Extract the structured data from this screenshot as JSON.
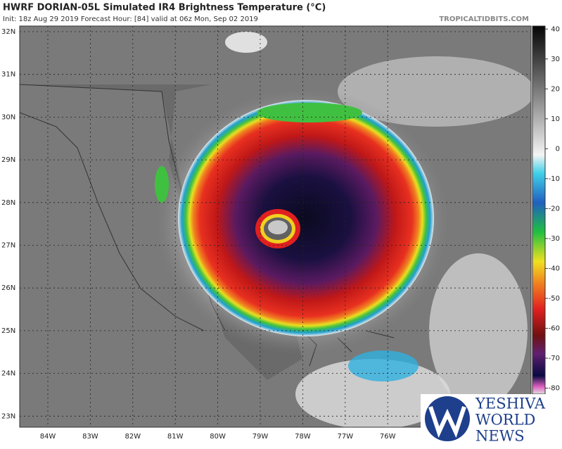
{
  "header": {
    "title": "HWRF DORIAN-05L Simulated IR4 Brightness Temperature (°C)",
    "subtitle": "Init: 18z Aug 29 2019    Forecast Hour: [84]    valid at 06z Mon, Sep 02 2019",
    "source": "TROPICALTIDBITS.COM"
  },
  "map": {
    "lat_labels": [
      "32N",
      "31N",
      "30N",
      "29N",
      "28N",
      "27N",
      "26N",
      "25N",
      "24N",
      "23N"
    ],
    "lon_labels": [
      "84W",
      "83W",
      "82W",
      "81W",
      "80W",
      "79W",
      "78W",
      "77W",
      "76W"
    ]
  },
  "colorbar": {
    "range": [
      -82,
      41
    ],
    "ticks": [
      40,
      30,
      20,
      10,
      0,
      -10,
      -20,
      -30,
      -40,
      -50,
      -60,
      -70,
      -80
    ]
  },
  "logo": {
    "line1": "YESHIVA",
    "line2": "WORLD",
    "line3": "NEWS"
  }
}
